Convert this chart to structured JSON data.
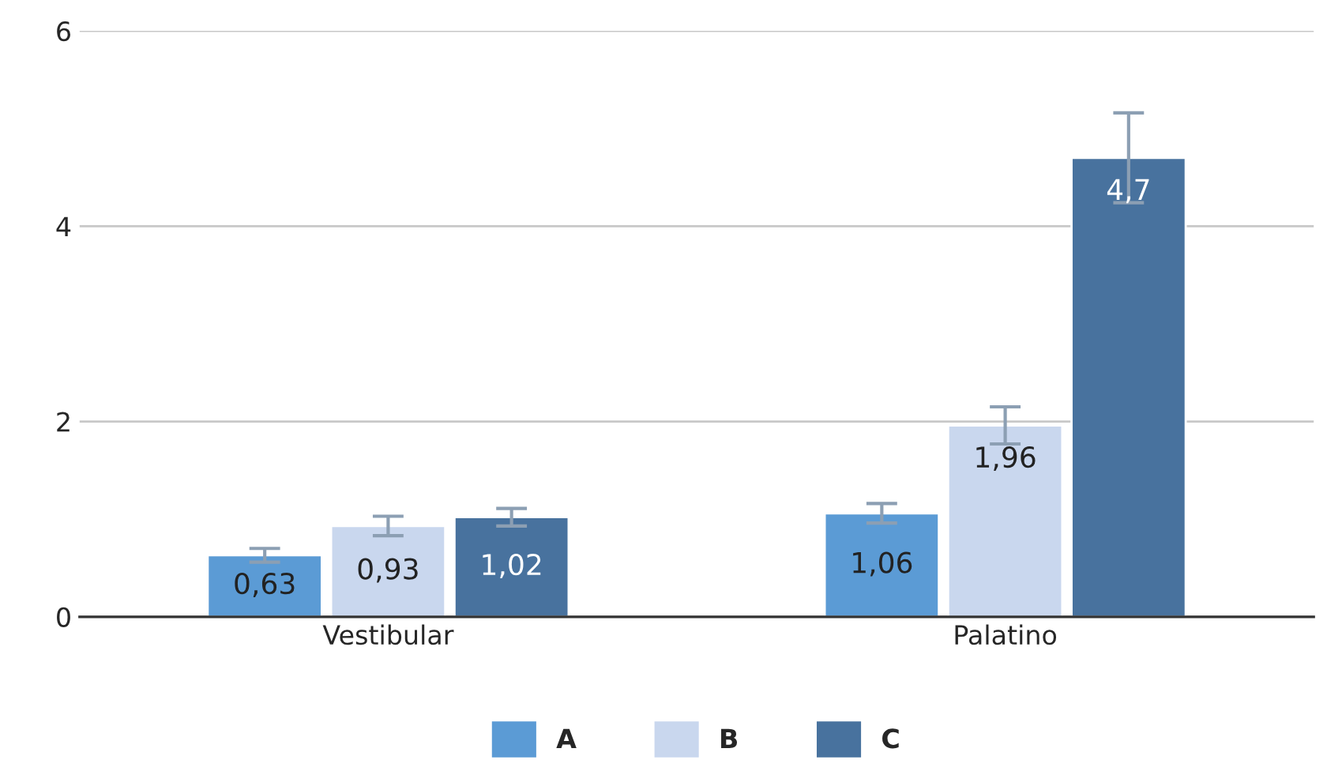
{
  "chart_data": {
    "type": "bar",
    "categories": [
      "Vestibular",
      "Palatino"
    ],
    "series": [
      {
        "name": "A",
        "color": "#5b9bd5",
        "values": [
          0.63,
          1.06
        ],
        "errors": [
          0.07,
          0.1
        ],
        "value_labels": [
          "0,63",
          "1,06"
        ]
      },
      {
        "name": "B",
        "color": "#c9d7ee",
        "values": [
          0.93,
          1.96
        ],
        "errors": [
          0.1,
          0.19
        ],
        "value_labels": [
          "0,93",
          "1,96"
        ]
      },
      {
        "name": "C",
        "color": "#48729e",
        "values": [
          1.02,
          4.7
        ],
        "errors": [
          0.09,
          0.46
        ],
        "value_labels": [
          "1,02",
          "4,7"
        ]
      }
    ],
    "ylim": [
      0,
      6
    ],
    "yticks": [
      0,
      2,
      4,
      6
    ],
    "grid": "y",
    "legend": "bottom"
  }
}
